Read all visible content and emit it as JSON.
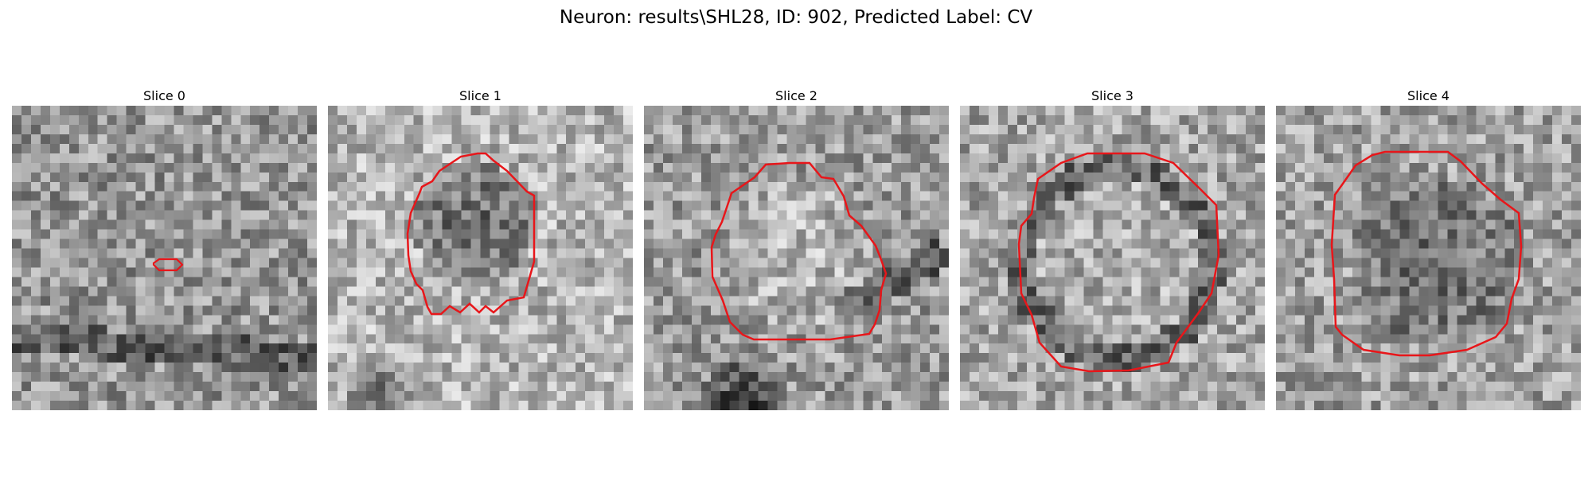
{
  "figure": {
    "title": "Neuron: results\\SHL28, ID: 902, Predicted Label: CV"
  },
  "colors": {
    "contour": "#e8161a",
    "background": "#ffffff"
  },
  "slices": [
    {
      "title": "Slice 0",
      "contour": "small-cell"
    },
    {
      "title": "Slice 1",
      "contour": "dark-soma"
    },
    {
      "title": "Slice 2",
      "contour": "rounded-soma"
    },
    {
      "title": "Slice 3",
      "contour": "octagon-soma"
    },
    {
      "title": "Slice 4",
      "contour": "octagon-soma"
    }
  ]
}
